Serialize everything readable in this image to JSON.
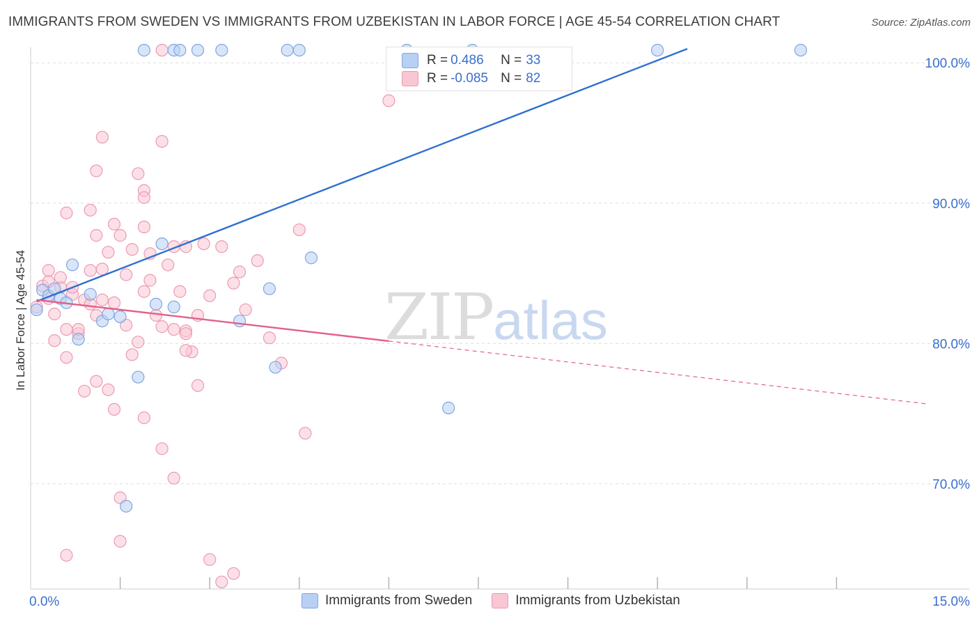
{
  "title": "IMMIGRANTS FROM SWEDEN VS IMMIGRANTS FROM UZBEKISTAN IN LABOR FORCE | AGE 45-54 CORRELATION CHART",
  "source": "Source: ZipAtlas.com",
  "watermark": {
    "zip": "ZIP",
    "atlas": "atlas"
  },
  "legend": {
    "rows": [
      {
        "label": "R =",
        "r": "0.486",
        "n_label": "N =",
        "n": "33"
      },
      {
        "label": "R =",
        "r": "-0.085",
        "n_label": "N =",
        "n": "82"
      }
    ]
  },
  "bottom_legend": {
    "sweden": "Immigrants from Sweden",
    "uzbekistan": "Immigrants from Uzbekistan"
  },
  "colors": {
    "blue_fill": "#b8d0f4",
    "blue_stroke": "#7fa6e0",
    "blue_line": "#2f6fd0",
    "pink_fill": "#f9c6d4",
    "pink_stroke": "#eb9ab2",
    "pink_line": "#e2608a",
    "tick_label": "#3a6fcf",
    "grid": "#dddddd"
  },
  "chart_data": {
    "type": "scatter",
    "title": "IMMIGRANTS FROM SWEDEN VS IMMIGRANTS FROM UZBEKISTAN IN LABOR FORCE | AGE 45-54 CORRELATION CHART",
    "xlabel": "",
    "ylabel": "In Labor Force | Age 45-54",
    "xlim": [
      0,
      15
    ],
    "ylim": [
      62.5,
      101.5
    ],
    "x_tick_labels": [
      {
        "value": 0,
        "label": "0.0%"
      },
      {
        "value": 15,
        "label": "15.0%"
      }
    ],
    "y_tick_labels": [
      {
        "value": 70,
        "label": "70.0%"
      },
      {
        "value": 80,
        "label": "80.0%"
      },
      {
        "value": 90,
        "label": "90.0%"
      },
      {
        "value": 100,
        "label": "100.0%"
      }
    ],
    "y_gridlines": [
      70,
      80,
      90,
      100
    ],
    "x_minor_ticks": [
      1.5,
      3.0,
      4.5,
      6.0,
      7.5,
      9.0,
      10.5,
      12.0,
      13.5
    ],
    "series": [
      {
        "name": "Immigrants from Sweden",
        "r": 0.486,
        "n": 33,
        "trend": {
          "x": [
            0.1,
            11.0
          ],
          "y": [
            83.0,
            101.0
          ],
          "solid_to": 11.0
        },
        "points": [
          [
            0.1,
            82.4
          ],
          [
            0.2,
            83.8
          ],
          [
            0.3,
            83.4
          ],
          [
            0.4,
            83.9
          ],
          [
            0.5,
            83.2
          ],
          [
            0.6,
            82.9
          ],
          [
            0.7,
            85.6
          ],
          [
            0.8,
            80.3
          ],
          [
            1.0,
            83.5
          ],
          [
            1.2,
            81.6
          ],
          [
            1.3,
            82.1
          ],
          [
            1.5,
            81.9
          ],
          [
            1.6,
            68.4
          ],
          [
            1.8,
            77.6
          ],
          [
            1.9,
            100.9
          ],
          [
            2.1,
            82.8
          ],
          [
            2.2,
            87.1
          ],
          [
            2.4,
            82.6
          ],
          [
            2.4,
            100.9
          ],
          [
            2.5,
            100.9
          ],
          [
            2.8,
            100.9
          ],
          [
            3.2,
            100.9
          ],
          [
            3.5,
            81.6
          ],
          [
            4.0,
            83.9
          ],
          [
            4.1,
            78.3
          ],
          [
            4.3,
            100.9
          ],
          [
            4.5,
            100.9
          ],
          [
            4.7,
            86.1
          ],
          [
            6.3,
            100.9
          ],
          [
            7.0,
            75.4
          ],
          [
            7.4,
            100.9
          ],
          [
            10.5,
            100.9
          ],
          [
            12.9,
            100.9
          ]
        ]
      },
      {
        "name": "Immigrants from Uzbekistan",
        "r": -0.085,
        "n": 82,
        "trend": {
          "x": [
            0.1,
            15.0
          ],
          "y": [
            83.1,
            75.7
          ],
          "solid_to": 6.0
        },
        "points": [
          [
            0.1,
            82.6
          ],
          [
            0.2,
            84.1
          ],
          [
            0.3,
            83.2
          ],
          [
            0.4,
            82.1
          ],
          [
            0.5,
            84.0
          ],
          [
            0.6,
            81.0
          ],
          [
            0.7,
            83.5
          ],
          [
            0.8,
            80.7
          ],
          [
            0.9,
            83.1
          ],
          [
            1.0,
            82.8
          ],
          [
            1.1,
            82.0
          ],
          [
            1.2,
            85.3
          ],
          [
            1.3,
            86.5
          ],
          [
            1.4,
            88.5
          ],
          [
            1.5,
            87.7
          ],
          [
            1.6,
            84.9
          ],
          [
            1.7,
            86.7
          ],
          [
            1.8,
            80.1
          ],
          [
            1.9,
            83.7
          ],
          [
            2.0,
            84.5
          ],
          [
            2.1,
            82.0
          ],
          [
            2.2,
            81.2
          ],
          [
            2.3,
            85.6
          ],
          [
            2.4,
            86.9
          ],
          [
            2.5,
            83.7
          ],
          [
            2.6,
            80.9
          ],
          [
            2.7,
            79.4
          ],
          [
            2.8,
            82.0
          ],
          [
            2.9,
            87.1
          ],
          [
            3.0,
            83.4
          ],
          [
            3.2,
            86.9
          ],
          [
            3.4,
            84.3
          ],
          [
            3.6,
            82.4
          ],
          [
            3.8,
            85.9
          ],
          [
            4.0,
            80.4
          ],
          [
            4.2,
            78.6
          ],
          [
            4.5,
            88.1
          ],
          [
            4.6,
            73.6
          ],
          [
            0.3,
            85.2
          ],
          [
            0.6,
            79.0
          ],
          [
            0.9,
            76.6
          ],
          [
            1.1,
            77.3
          ],
          [
            1.3,
            76.7
          ],
          [
            1.4,
            75.3
          ],
          [
            1.5,
            69.0
          ],
          [
            1.7,
            79.2
          ],
          [
            1.9,
            74.7
          ],
          [
            2.2,
            72.5
          ],
          [
            2.4,
            70.4
          ],
          [
            2.6,
            79.5
          ],
          [
            2.8,
            77.0
          ],
          [
            3.0,
            64.6
          ],
          [
            3.2,
            63.0
          ],
          [
            3.4,
            63.6
          ],
          [
            1.5,
            65.9
          ],
          [
            0.6,
            64.9
          ],
          [
            1.2,
            94.7
          ],
          [
            1.1,
            92.3
          ],
          [
            1.8,
            92.1
          ],
          [
            1.9,
            90.9
          ],
          [
            1.9,
            90.4
          ],
          [
            2.2,
            94.4
          ],
          [
            0.6,
            89.3
          ],
          [
            1.0,
            89.5
          ],
          [
            1.1,
            87.7
          ],
          [
            1.9,
            88.3
          ],
          [
            2.0,
            86.4
          ],
          [
            2.6,
            86.9
          ],
          [
            6.0,
            97.3
          ],
          [
            2.2,
            100.9
          ],
          [
            0.3,
            84.4
          ],
          [
            0.5,
            84.7
          ],
          [
            0.7,
            84.0
          ],
          [
            0.8,
            81.0
          ],
          [
            1.0,
            85.2
          ],
          [
            1.2,
            83.1
          ],
          [
            1.4,
            82.9
          ],
          [
            0.4,
            80.2
          ],
          [
            2.4,
            81.0
          ],
          [
            2.6,
            80.7
          ],
          [
            3.5,
            85.1
          ],
          [
            1.6,
            81.3
          ]
        ]
      }
    ]
  }
}
